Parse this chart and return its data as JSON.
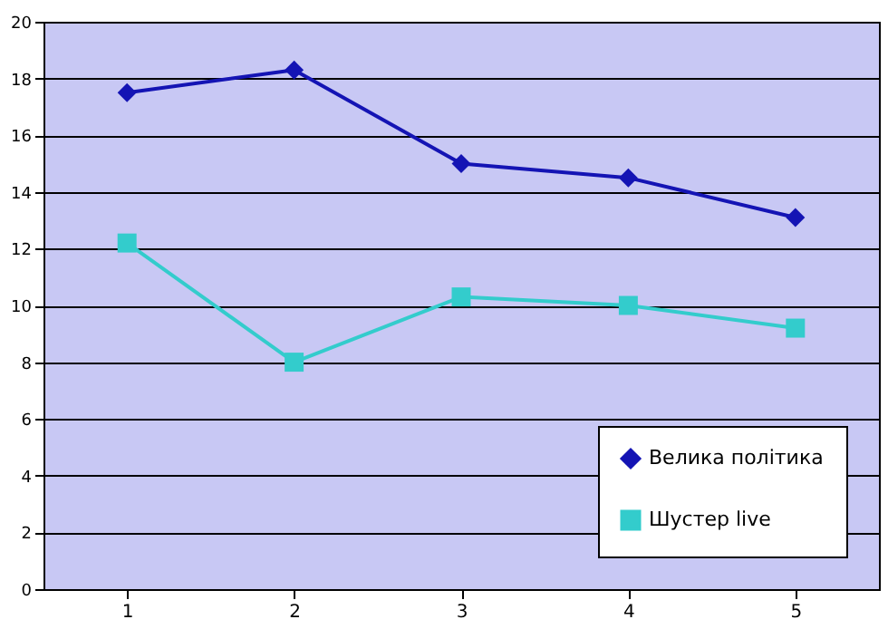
{
  "chart_data": {
    "type": "line",
    "categories": [
      "1",
      "2",
      "3",
      "4",
      "5"
    ],
    "series": [
      {
        "name": "Велика політика",
        "color": "#1414b4",
        "marker": "diamond",
        "values": [
          17.5,
          18.3,
          15.0,
          14.5,
          13.1
        ]
      },
      {
        "name": "Шустер live",
        "color": "#33cccc",
        "marker": "square",
        "values": [
          12.2,
          8.0,
          10.3,
          10.0,
          9.2
        ]
      }
    ],
    "ylim": [
      0,
      20
    ],
    "yticks": [
      0,
      2,
      4,
      6,
      8,
      10,
      12,
      14,
      16,
      18,
      20
    ],
    "grid": "y",
    "legend": "bottom right",
    "line_style": "solid"
  }
}
